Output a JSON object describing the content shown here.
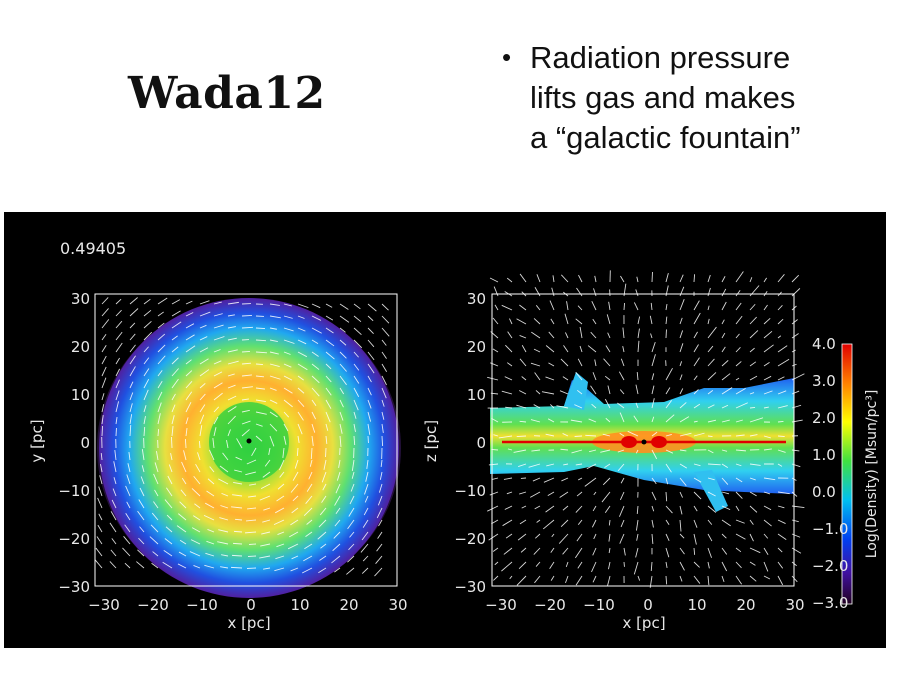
{
  "slide": {
    "title": "Wada12",
    "bullets": [
      {
        "lines": [
          "Radiation pressure",
          "lifts gas and makes",
          "a “galactic fountain”"
        ]
      }
    ]
  },
  "figure": {
    "timestamp": "0.49405",
    "left_panel": {
      "x_ticks": [
        "−30",
        "−20",
        "−10",
        "0",
        "10",
        "20",
        "30"
      ],
      "y_ticks": [
        "30",
        "20",
        "10",
        "0",
        "−10",
        "−20",
        "−30"
      ],
      "xlabel": "x [pc]",
      "ylabel": "y [pc]"
    },
    "right_panel": {
      "x_ticks": [
        "−30",
        "−20",
        "−10",
        "0",
        "10",
        "20",
        "30"
      ],
      "y_ticks": [
        "30",
        "20",
        "10",
        "0",
        "−10",
        "−20",
        "−30"
      ],
      "xlabel": "x [pc]",
      "ylabel": "z [pc]"
    },
    "colorbar": {
      "ticks": [
        "4.0",
        "3.0",
        "2.0",
        "1.0",
        "0.0",
        "−1.0",
        "−2.0",
        "−3.0"
      ],
      "label": "Log(Density) [Msun/pc³]",
      "range": [
        -3.0,
        4.0
      ]
    },
    "colors": {
      "background": "#000000",
      "arrow": "#ffffff"
    }
  }
}
